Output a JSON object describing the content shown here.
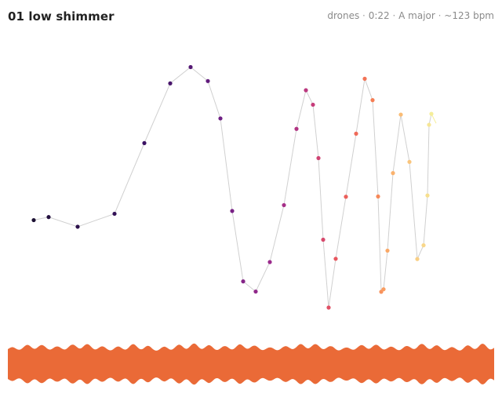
{
  "track": {
    "title": "01 low shimmer",
    "meta": [
      "drones",
      "0:22",
      "A major",
      "~123 bpm"
    ],
    "meta_separator": "·"
  },
  "pitch_contour": {
    "line_color": "#d0d0d0",
    "colormap": "magma",
    "colormap_stops": [
      "#1c1033",
      "#3b1263",
      "#6e1f84",
      "#9b2b8c",
      "#c63c7a",
      "#e8565e",
      "#f57d53",
      "#faa866",
      "#f9cf84",
      "#f5ee9a"
    ],
    "points": [
      0.344,
      0.356,
      0.318,
      0.369,
      0.647,
      0.882,
      0.946,
      0.891,
      0.744,
      0.38,
      0.103,
      0.063,
      0.179,
      0.403,
      0.703,
      0.855,
      0.798,
      0.588,
      0.267,
      0.0,
      0.192,
      0.436,
      0.684,
      0.9,
      0.816,
      0.437,
      0.062,
      0.072,
      0.224,
      0.529,
      0.759,
      0.573,
      0.191,
      0.245,
      0.441,
      0.719,
      0.762
    ]
  },
  "waveform": {
    "color": "#ea6a37",
    "amplitude": [
      0.6,
      0.75,
      0.9,
      0.8,
      0.7,
      0.85,
      0.95,
      0.8,
      0.65,
      0.7,
      0.9,
      0.78,
      0.6,
      0.75,
      0.88,
      0.95,
      0.82,
      0.7,
      0.8,
      0.92,
      0.75,
      0.62,
      0.7,
      0.85,
      0.96,
      0.88,
      0.72,
      0.6,
      0.78,
      0.9,
      0.8,
      0.66,
      0.74,
      0.93,
      0.85,
      0.7,
      0.62,
      0.8,
      0.94,
      0.76
    ]
  }
}
